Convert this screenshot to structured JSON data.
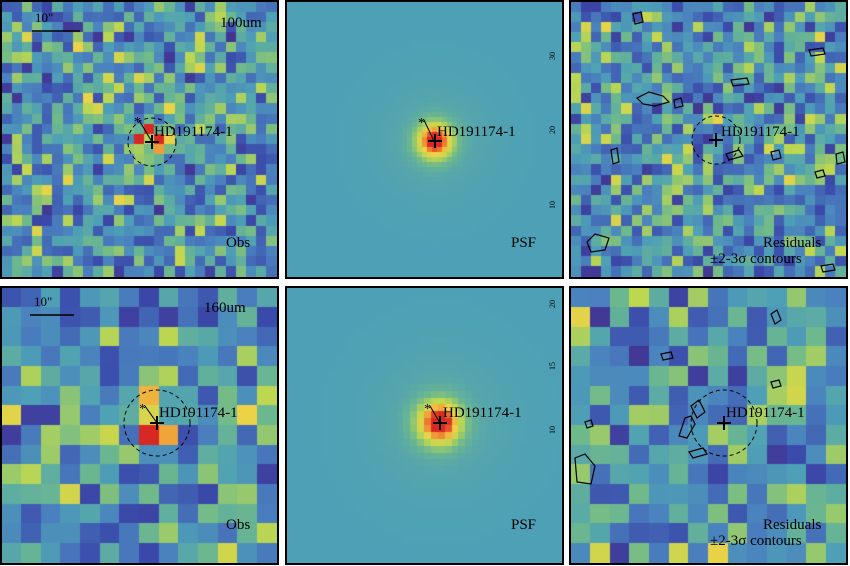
{
  "panels": {
    "top_left": {
      "band": "100um",
      "scale": "10\"",
      "source": "HD191174-1",
      "kind": "Obs"
    },
    "top_mid": {
      "source": "HD191174-1",
      "kind": "PSF",
      "ticks": [
        "30",
        "20",
        "10"
      ]
    },
    "top_right": {
      "source": "HD191174-1",
      "kind_line1": "Residuals",
      "kind_line2": "±2-3σ contours"
    },
    "bot_left": {
      "band": "160um",
      "scale": "10\"",
      "source": "HD191174-1",
      "kind": "Obs"
    },
    "bot_mid": {
      "source": "HD191174-1",
      "kind": "PSF",
      "ticks": [
        "20",
        "15",
        "10"
      ]
    },
    "bot_right": {
      "source": "HD191174-1",
      "kind_line1": "Residuals",
      "kind_line2": "±2-3σ contours"
    }
  },
  "colors": {
    "noise_low": "#3a4aa0",
    "noise_mid": "#4e9fb6",
    "noise_high": "#c7d84a",
    "peak": "#e03020",
    "background_psf": "#4e9fb6"
  }
}
